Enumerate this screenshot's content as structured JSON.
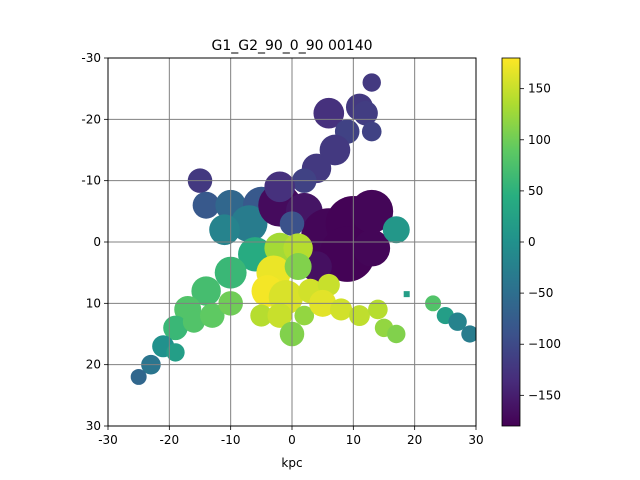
{
  "chart_data": {
    "type": "heatmap",
    "title": "G1_G2_90_0_90   00140",
    "xlabel": "kpc",
    "ylabel": "",
    "xlim": [
      -30,
      30
    ],
    "ylim": [
      -30,
      30
    ],
    "y_inverted": true,
    "x_ticks": [
      "-30",
      "-20",
      "-10",
      "0",
      "10",
      "20",
      "30"
    ],
    "y_ticks": [
      "-30",
      "-20",
      "-10",
      "0",
      "10",
      "20",
      "30"
    ],
    "grid": true,
    "colormap": "viridis",
    "colorbar": {
      "range": [
        -180,
        180
      ],
      "ticks": [
        150,
        100,
        50,
        0,
        -50,
        -100,
        -150
      ],
      "tick_labels": [
        "150",
        "100",
        "50",
        "0",
        "−50",
        "−100",
        "−150"
      ]
    },
    "blobs": [
      {
        "x": 13,
        "y": -26,
        "r": 1.5,
        "v": -120
      },
      {
        "x": 11,
        "y": -22,
        "r": 2.2,
        "v": -120
      },
      {
        "x": 6,
        "y": -21,
        "r": 2.5,
        "v": -130
      },
      {
        "x": 9,
        "y": -18,
        "r": 2.0,
        "v": -110
      },
      {
        "x": 7,
        "y": -15,
        "r": 2.5,
        "v": -120
      },
      {
        "x": 4,
        "y": -12,
        "r": 2.4,
        "v": -120
      },
      {
        "x": 12,
        "y": -21,
        "r": 2.0,
        "v": -115
      },
      {
        "x": 13,
        "y": -18,
        "r": 1.6,
        "v": -110
      },
      {
        "x": 2,
        "y": -10,
        "r": 2.0,
        "v": -110
      },
      {
        "x": -15,
        "y": -10,
        "r": 2.0,
        "v": -120
      },
      {
        "x": -14,
        "y": -6,
        "r": 2.2,
        "v": -80
      },
      {
        "x": -10,
        "y": -6,
        "r": 2.5,
        "v": -60
      },
      {
        "x": -5,
        "y": -6,
        "r": 3.0,
        "v": -80
      },
      {
        "x": -7,
        "y": -3,
        "r": 3.0,
        "v": -30
      },
      {
        "x": -11,
        "y": -2,
        "r": 2.5,
        "v": -20
      },
      {
        "x": -2,
        "y": -6,
        "r": 3.5,
        "v": -170
      },
      {
        "x": 2,
        "y": -5,
        "r": 3.0,
        "v": -160
      },
      {
        "x": -2,
        "y": -9,
        "r": 2.5,
        "v": -130
      },
      {
        "x": 6,
        "y": -1,
        "r": 4.5,
        "v": -175
      },
      {
        "x": 10,
        "y": -3,
        "r": 4.5,
        "v": -178
      },
      {
        "x": 13,
        "y": -5,
        "r": 3.5,
        "v": -175
      },
      {
        "x": 9,
        "y": 2,
        "r": 4.5,
        "v": -178
      },
      {
        "x": 13,
        "y": 1,
        "r": 3.0,
        "v": -175
      },
      {
        "x": 4,
        "y": 4,
        "r": 2.5,
        "v": -165
      },
      {
        "x": 17,
        "y": -2,
        "r": 2.2,
        "v": 10
      },
      {
        "x": 0,
        "y": -3,
        "r": 2.0,
        "v": -90
      },
      {
        "x": -6,
        "y": 2,
        "r": 2.8,
        "v": 40
      },
      {
        "x": -10,
        "y": 5,
        "r": 2.6,
        "v": 60
      },
      {
        "x": -14,
        "y": 8,
        "r": 2.4,
        "v": 70
      },
      {
        "x": -17,
        "y": 11,
        "r": 2.2,
        "v": 80
      },
      {
        "x": -19,
        "y": 14,
        "r": 2.0,
        "v": 60
      },
      {
        "x": -16,
        "y": 13,
        "r": 1.8,
        "v": 80
      },
      {
        "x": -13,
        "y": 12,
        "r": 2.0,
        "v": 90
      },
      {
        "x": -10,
        "y": 10,
        "r": 2.0,
        "v": 100
      },
      {
        "x": -21,
        "y": 17,
        "r": 1.8,
        "v": 0
      },
      {
        "x": -23,
        "y": 20,
        "r": 1.6,
        "v": -40
      },
      {
        "x": -25,
        "y": 22,
        "r": 1.3,
        "v": -60
      },
      {
        "x": -19,
        "y": 18,
        "r": 1.5,
        "v": 20
      },
      {
        "x": -2,
        "y": 1,
        "r": 2.5,
        "v": 130
      },
      {
        "x": 1,
        "y": 1,
        "r": 2.4,
        "v": 140
      },
      {
        "x": -3,
        "y": 5,
        "r": 2.8,
        "v": 170
      },
      {
        "x": 1,
        "y": 4,
        "r": 2.2,
        "v": 110
      },
      {
        "x": -4,
        "y": 8,
        "r": 2.6,
        "v": 175
      },
      {
        "x": -1,
        "y": 9,
        "r": 2.8,
        "v": 160
      },
      {
        "x": -5,
        "y": 12,
        "r": 1.8,
        "v": 140
      },
      {
        "x": -2,
        "y": 12,
        "r": 2.0,
        "v": 150
      },
      {
        "x": 0,
        "y": 15,
        "r": 2.0,
        "v": 110
      },
      {
        "x": 2,
        "y": 12,
        "r": 1.6,
        "v": 120
      },
      {
        "x": 3,
        "y": 8,
        "r": 2.0,
        "v": 155
      },
      {
        "x": 6,
        "y": 7,
        "r": 1.8,
        "v": 150
      },
      {
        "x": 5,
        "y": 10,
        "r": 2.2,
        "v": 165
      },
      {
        "x": 8,
        "y": 11,
        "r": 1.8,
        "v": 155
      },
      {
        "x": 11,
        "y": 12,
        "r": 1.7,
        "v": 145
      },
      {
        "x": 14,
        "y": 11,
        "r": 1.6,
        "v": 140
      },
      {
        "x": 15,
        "y": 14,
        "r": 1.5,
        "v": 120
      },
      {
        "x": 17,
        "y": 15,
        "r": 1.5,
        "v": 110
      },
      {
        "x": 23,
        "y": 10,
        "r": 1.3,
        "v": 80
      },
      {
        "x": 25,
        "y": 12,
        "r": 1.4,
        "v": 20
      },
      {
        "x": 27,
        "y": 13,
        "r": 1.5,
        "v": -20
      },
      {
        "x": 29,
        "y": 15,
        "r": 1.4,
        "v": -30
      }
    ],
    "pixels": [
      {
        "x": 18.7,
        "y": 8.5,
        "v": 20
      }
    ]
  }
}
